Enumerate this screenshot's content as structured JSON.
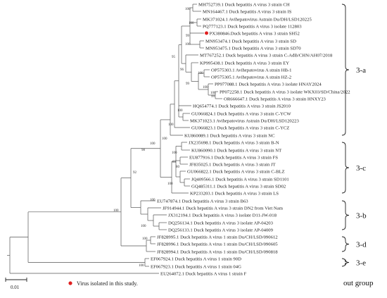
{
  "leaves": [
    "MH752739.1 Duck hepatitis A virus 3 strain CH",
    "MN164467.1 Duck hepatitis A virus 3 strain IS",
    "MK371024.1 Avihepatovirus Astrain Du/DH/LSD120225",
    "PQ777123.1 Duck hepatitis A virus 3 isolate 112803",
    "PX380846.Duck hepatitis A virus 3 strain SH52",
    "MN953474.1 Duck hepatitis A virus 3 strain SD",
    "MN953475.1 Duck hepatitis A virus 3 strain SD70",
    "MT767252.1 Duck hepatitis A virus 3 strain C-AdB/CHN/AH07/2018",
    "KP995438.1 Duck hepatitis A virus 3 strain EY",
    "OP575303.1 Avihepatovirus A strain HB-1",
    "OP575305.1 Avihepatovirus A strain HZ-2",
    "PP977088.1 Duck hepatitis A virus 3 isolate HNAY2024",
    "PP072258.1 Duck hepatitis A virus 3 isolate WKX03/SD/China/2022",
    "OR666647.1 Duck hepatitis A virus 3 strain HNXY23",
    "HQ654774.1 Duck hepatitis A virus 3 strain JS2010",
    "GU066824.1 Duck hepatitis A virus 3 strain C-YCW",
    "MK371023.1 Avihepatovirus Astrain Du/DH/LSD120223",
    "GU066823.1 Duck hepatitis A virus 3 strain C-YCZ",
    "KU860089.1 Duck hepatitis A virus 3 strain NC",
    "JX235698.1 Duck hepatitis A virus 3 strain B-N",
    "KU860090.1 Duck hepatitis A virus 3 strain NT",
    "EU877916.1 Duck hepatitis A virus 3 strain FS",
    "JF835025.1 Duck hepatitis A virus 3 strain JT",
    "GU066822.1 Duck hepatitis A virus 3 strain C-BLZ",
    "JQ409566.1 Duck hepatitis A virus 3 strain SD1101",
    "GQ485311.1 Duck hepatitis A virus 3 strain SD02",
    "KP233203.1 Duck hepatitis A virus 3 strain LS",
    "EU747874.1 Duck hepatitis A virus 3 strain B63",
    "JF914944.1 Duck hepatitis A virus 3 strain DN2 from Viet Nam",
    "JX312194.1 Duck hepatitis A virus 3 isolate D11-JW-018",
    "DQ256134.1 Duck hepatitis A virus 3 isolate AP-04203",
    "DQ256133.1 Duck hepatitis A virus 3 isolate AP-04009",
    "JF828995.1 Duck hepatitis A virus 1 strain Du/CH/LSD/090612",
    "JF828996.1 Duck hepatitis A virus 1 strain Du/CH/LSD/090605",
    "JF828994.1 Duck hepatitis A virus 1 strain Du/CH/LSD/090818",
    "EF067924.1 Duck hepatitis A virus 1 strain 90D",
    "EF067923.1 Duck hepatitis A virus 1 strain 04G",
    "EU264072.1 Duck hepatitis A virus 1 strain F"
  ],
  "bootstrap": [
    "100",
    "100",
    "100",
    "99",
    "100",
    "100",
    "100",
    "99",
    "99",
    "96",
    "95",
    "100",
    "100",
    "100",
    "100",
    "89",
    "80",
    "100",
    "100",
    "98",
    "92",
    "100",
    "100",
    "100",
    "100",
    "100"
  ],
  "clades": [
    "3-a",
    "3-c",
    "3-b",
    "3-d",
    "3-e",
    "out group"
  ],
  "scale_label": "0.01",
  "legend_text": "Virus isolated in this study.",
  "colors": {
    "highlight": "#e02020",
    "line": "#555555"
  }
}
